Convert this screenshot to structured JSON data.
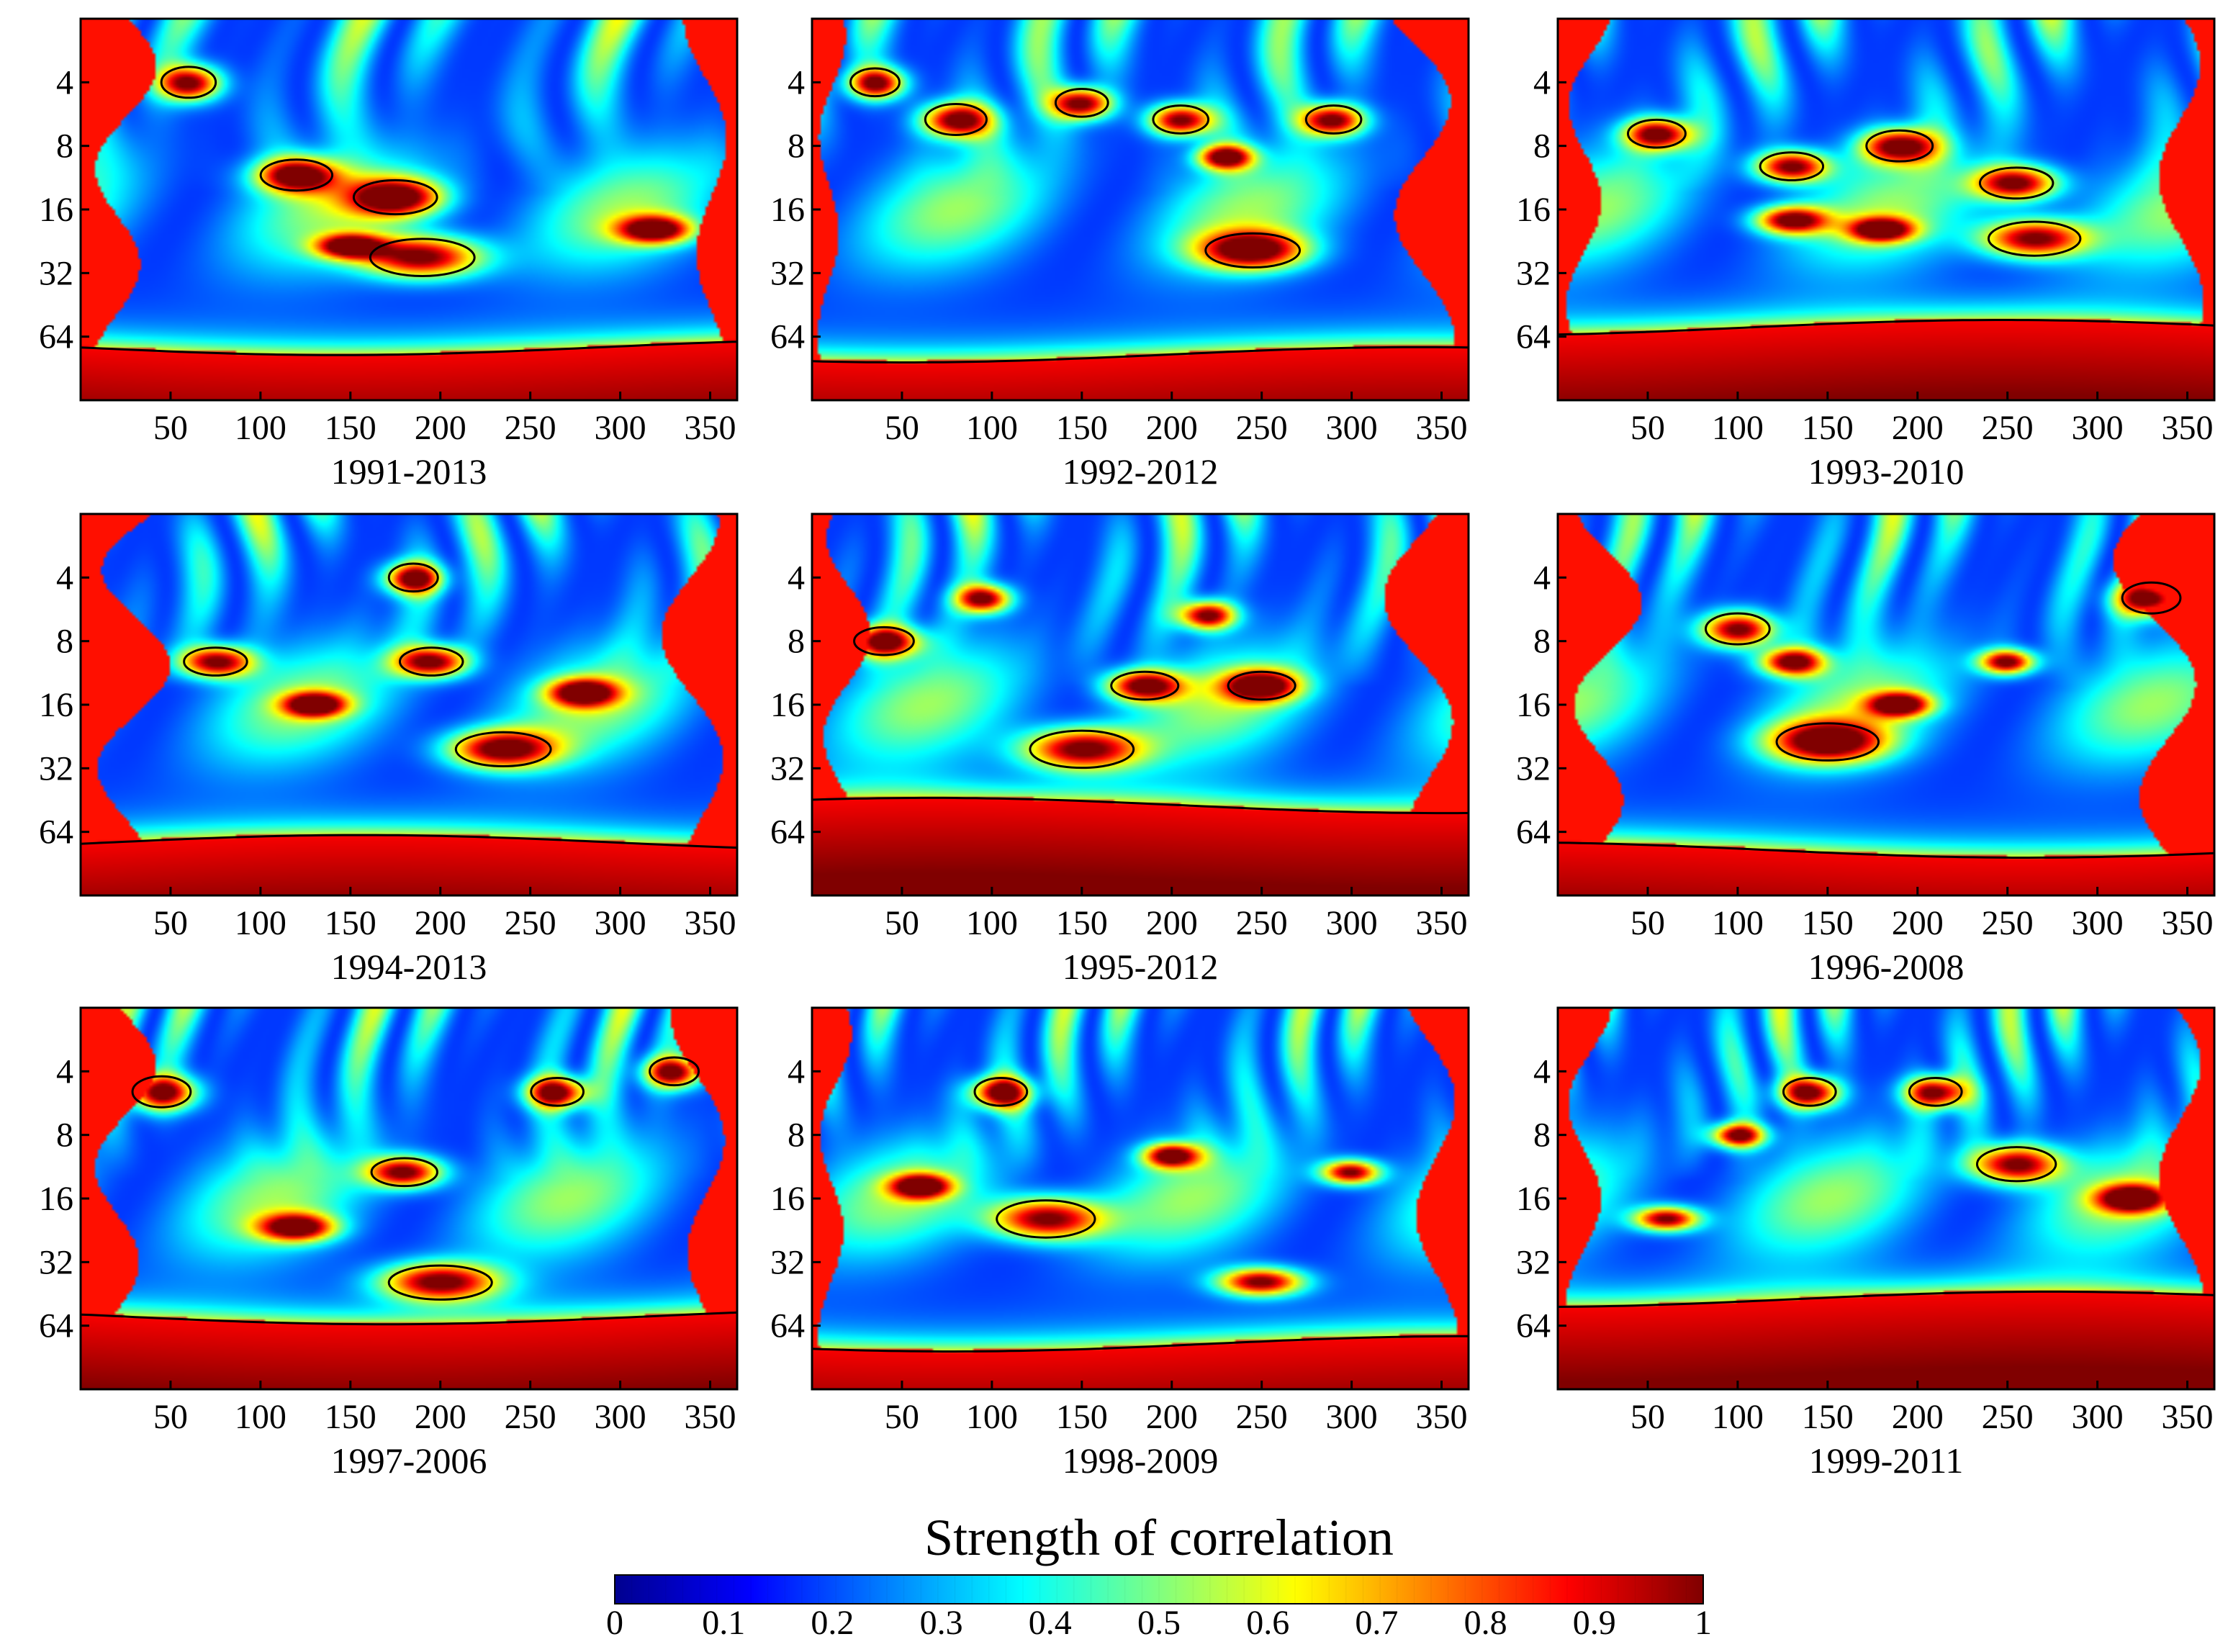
{
  "chart_data": {
    "type": "heatmap",
    "description_kind": "wavelet coherence grid",
    "y_ticks": [
      "4",
      "8",
      "16",
      "32",
      "64"
    ],
    "x_ticks": [
      "50",
      "100",
      "150",
      "200",
      "250",
      "300",
      "350"
    ],
    "xlim": [
      0,
      365
    ],
    "ylim_period": [
      2,
      128
    ],
    "significance_contour": 0.9,
    "panels": [
      {
        "label": "1991-2013",
        "cones": [
          0.12,
          0.08
        ],
        "low_period_start": 72,
        "blobs": [
          [
            60,
            4,
            1.0
          ],
          [
            120,
            11,
            1.0
          ],
          [
            175,
            14,
            1.1
          ],
          [
            190,
            27,
            1.2
          ],
          [
            150,
            24,
            0.7
          ],
          [
            320,
            20,
            0.8
          ]
        ]
      },
      {
        "label": "1992-2012",
        "cones": [
          0.05,
          0.14
        ],
        "low_period_start": 78,
        "blobs": [
          [
            35,
            4,
            0.9
          ],
          [
            80,
            6,
            1.0
          ],
          [
            150,
            5,
            0.9
          ],
          [
            205,
            6,
            0.9
          ],
          [
            245,
            25,
            1.1
          ],
          [
            290,
            6,
            0.9
          ],
          [
            230,
            9,
            0.7
          ]
        ]
      },
      {
        "label": "1993-2010",
        "cones": [
          0.08,
          0.1
        ],
        "low_period_start": 58,
        "blobs": [
          [
            55,
            7,
            0.9
          ],
          [
            130,
            10,
            0.9
          ],
          [
            190,
            8,
            1.0
          ],
          [
            255,
            12,
            1.0
          ],
          [
            265,
            22,
            1.1
          ],
          [
            130,
            18,
            0.8
          ],
          [
            180,
            20,
            0.7
          ]
        ]
      },
      {
        "label": "1994-2013",
        "cones": [
          0.16,
          0.13
        ],
        "low_period_start": 72,
        "blobs": [
          [
            75,
            10,
            0.9
          ],
          [
            195,
            10,
            0.9
          ],
          [
            235,
            26,
            1.1
          ],
          [
            185,
            4,
            0.9
          ],
          [
            130,
            16,
            0.7
          ],
          [
            280,
            14,
            0.8
          ]
        ]
      },
      {
        "label": "1995-2012",
        "cones": [
          0.1,
          0.14
        ],
        "low_period_start": 48,
        "blobs": [
          [
            40,
            8,
            0.9
          ],
          [
            150,
            26,
            1.2
          ],
          [
            185,
            13,
            0.9
          ],
          [
            250,
            13,
            0.9
          ],
          [
            95,
            5,
            0.8
          ],
          [
            220,
            6,
            0.8
          ]
        ]
      },
      {
        "label": "1996-2008",
        "cones": [
          0.14,
          0.16
        ],
        "low_period_start": 78,
        "blobs": [
          [
            100,
            7,
            1.0
          ],
          [
            150,
            24,
            1.2
          ],
          [
            130,
            10,
            0.8
          ],
          [
            330,
            5,
            1.0
          ],
          [
            250,
            10,
            0.7
          ],
          [
            190,
            16,
            0.7
          ]
        ]
      },
      {
        "label": "1997-2006",
        "cones": [
          0.12,
          0.1
        ],
        "low_period_start": 58,
        "blobs": [
          [
            45,
            5,
            1.0
          ],
          [
            180,
            12,
            0.9
          ],
          [
            265,
            5,
            0.9
          ],
          [
            200,
            40,
            1.1
          ],
          [
            120,
            22,
            0.8
          ],
          [
            330,
            4,
            0.9
          ]
        ]
      },
      {
        "label": "1998-2009",
        "cones": [
          0.06,
          0.1
        ],
        "low_period_start": 78,
        "blobs": [
          [
            130,
            20,
            1.2
          ],
          [
            105,
            5,
            0.9
          ],
          [
            250,
            40,
            0.8
          ],
          [
            200,
            10,
            0.7
          ],
          [
            60,
            14,
            0.7
          ],
          [
            300,
            12,
            0.7
          ]
        ]
      },
      {
        "label": "1999-2011",
        "cones": [
          0.08,
          0.1
        ],
        "low_period_start": 48,
        "blobs": [
          [
            255,
            11,
            1.1
          ],
          [
            210,
            5,
            0.9
          ],
          [
            140,
            5,
            0.9
          ],
          [
            60,
            20,
            0.7
          ],
          [
            320,
            16,
            0.8
          ],
          [
            100,
            8,
            0.7
          ]
        ]
      }
    ],
    "colorbar": {
      "title": "Strength of correlation",
      "ticks": [
        "0",
        "0.1",
        "0.2",
        "0.3",
        "0.4",
        "0.5",
        "0.6",
        "0.7",
        "0.8",
        "0.9",
        "1"
      ],
      "range": [
        0,
        1
      ],
      "colormap": [
        "#00008f",
        "#0000ff",
        "#0080ff",
        "#00ffff",
        "#80ff80",
        "#ffff00",
        "#ff8000",
        "#ff0000",
        "#800000"
      ]
    }
  }
}
